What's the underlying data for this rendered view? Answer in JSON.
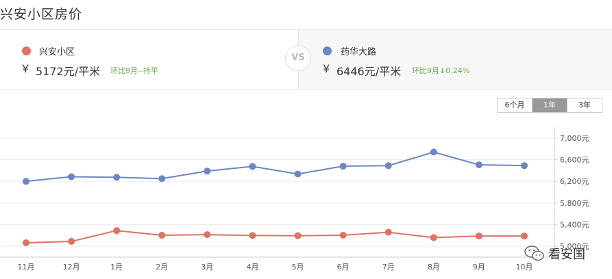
{
  "page": {
    "title": "兴安小区房价"
  },
  "compare": {
    "left": {
      "name": "兴安小区",
      "currency": "¥",
      "price": "5172元/平米",
      "trend": "环比9月--持平",
      "color": "#e07060"
    },
    "vs_label": "VS",
    "right": {
      "name": "药华大路",
      "currency": "¥",
      "price": "6446元/平米",
      "trend": "环比9月↓0.24%",
      "color": "#6b86c6"
    }
  },
  "range_tabs": [
    {
      "label": "6个月",
      "active": false
    },
    {
      "label": "1年",
      "active": true
    },
    {
      "label": "3年",
      "active": false
    }
  ],
  "watermark": {
    "text": "看安国",
    "icon": "wechat-icon"
  },
  "chart_data": {
    "type": "line",
    "categories": [
      "11月",
      "12月",
      "1月",
      "2月",
      "3月",
      "4月",
      "5月",
      "6月",
      "7月",
      "8月",
      "9月",
      "10月"
    ],
    "series": [
      {
        "name": "药华大路",
        "color": "#6b86c6",
        "values": [
          6200,
          6285,
          6275,
          6250,
          6390,
          6475,
          6335,
          6480,
          6490,
          6740,
          6505,
          6490
        ]
      },
      {
        "name": "兴安小区",
        "color": "#e07060",
        "values": [
          5065,
          5090,
          5290,
          5205,
          5215,
          5200,
          5195,
          5205,
          5260,
          5160,
          5190,
          5190
        ]
      }
    ],
    "ylim": [
      4800,
      7200
    ],
    "yticks": [
      5000,
      5400,
      5800,
      6200,
      6600,
      7000
    ],
    "ytick_labels": [
      "5,000元",
      "5,400元",
      "5,800元",
      "6,200元",
      "6,600元",
      "7,000元"
    ],
    "grid": true
  }
}
